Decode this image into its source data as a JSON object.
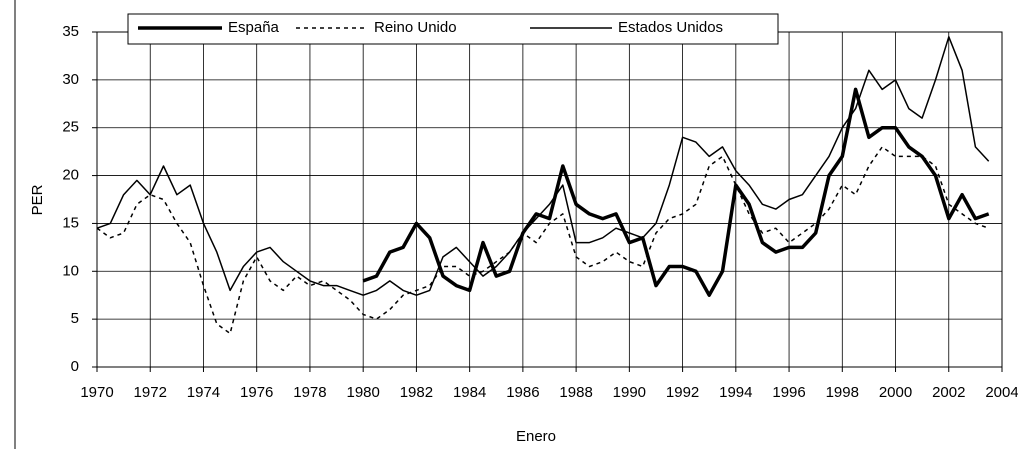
{
  "chart_data": {
    "type": "line",
    "xlabel": "Enero",
    "ylabel": "PER",
    "x": [
      1970,
      1970.5,
      1971,
      1971.5,
      1972,
      1972.5,
      1973,
      1973.5,
      1974,
      1974.5,
      1975,
      1975.5,
      1976,
      1976.5,
      1977,
      1977.5,
      1978,
      1978.5,
      1979,
      1979.5,
      1980,
      1980.5,
      1981,
      1981.5,
      1982,
      1982.5,
      1983,
      1983.5,
      1984,
      1984.5,
      1985,
      1985.5,
      1986,
      1986.5,
      1987,
      1987.5,
      1988,
      1988.5,
      1989,
      1989.5,
      1990,
      1990.5,
      1991,
      1991.5,
      1992,
      1992.5,
      1993,
      1993.5,
      1994,
      1994.5,
      1995,
      1995.5,
      1996,
      1996.5,
      1997,
      1997.5,
      1998,
      1998.5,
      1999,
      1999.5,
      2000,
      2000.5,
      2001,
      2001.5,
      2002,
      2002.5,
      2003,
      2003.5
    ],
    "series": [
      {
        "name": "España",
        "color": "#000000",
        "width": 3.5,
        "dash": "none",
        "values": [
          null,
          null,
          null,
          null,
          null,
          null,
          null,
          null,
          null,
          null,
          null,
          null,
          null,
          null,
          null,
          null,
          null,
          null,
          null,
          null,
          9,
          9.5,
          12,
          12.5,
          15,
          13.5,
          9.5,
          8.5,
          8,
          13,
          9.5,
          10,
          14,
          16,
          15.5,
          21,
          17,
          16,
          15.5,
          16,
          13,
          13.5,
          8.5,
          10.5,
          10.5,
          10,
          7.5,
          10,
          19,
          17,
          13,
          12,
          12.5,
          12.5,
          14,
          20,
          22,
          29,
          24,
          25,
          25,
          23,
          22,
          20,
          15.5,
          18,
          15.5,
          16
        ]
      },
      {
        "name": "Reino Unido",
        "color": "#000000",
        "width": 1.5,
        "dash": "4 4",
        "values": [
          14.5,
          13.5,
          14,
          17,
          18,
          17.5,
          15,
          13,
          8.5,
          4.5,
          3.5,
          9,
          11.5,
          9,
          8,
          9.5,
          8.5,
          9,
          8,
          7,
          5.5,
          5,
          6,
          7.5,
          8,
          8.5,
          10.5,
          10.5,
          9.5,
          10,
          11,
          12,
          14,
          13,
          15,
          16,
          11.5,
          10.5,
          11,
          12,
          11,
          10.5,
          14,
          15.5,
          16,
          17,
          21,
          22,
          19,
          16,
          14,
          14.5,
          13,
          14,
          15,
          16.5,
          19,
          18,
          21,
          23,
          22,
          22,
          22,
          21,
          17,
          16,
          15,
          14.5
        ]
      },
      {
        "name": "Estados Unidos",
        "color": "#000000",
        "width": 1.5,
        "dash": "none",
        "values": [
          14.5,
          15,
          18,
          19.5,
          18,
          21,
          18,
          19,
          15,
          12,
          8,
          10.5,
          12,
          12.5,
          11,
          10,
          9,
          8.5,
          8.5,
          8,
          7.5,
          8,
          9,
          8,
          7.5,
          8,
          11.5,
          12.5,
          11,
          9.5,
          10.5,
          12,
          14,
          15.5,
          17,
          19,
          13,
          13,
          13.5,
          14.5,
          14,
          13.5,
          15,
          19,
          24,
          23.5,
          22,
          23,
          20.5,
          19,
          17,
          16.5,
          17.5,
          18,
          20,
          22,
          25,
          27,
          31,
          29,
          30,
          27,
          26,
          30,
          34.5,
          31,
          23,
          21.5
        ]
      }
    ],
    "xlim": [
      1970,
      2004
    ],
    "xticks": [
      1970,
      1972,
      1974,
      1976,
      1978,
      1980,
      1982,
      1984,
      1986,
      1988,
      1990,
      1992,
      1994,
      1996,
      1998,
      2000,
      2002,
      2004
    ],
    "ylim": [
      0,
      35
    ],
    "yticks": [
      0,
      5,
      10,
      15,
      20,
      25,
      30,
      35
    ],
    "grid": true,
    "legend": "top"
  }
}
